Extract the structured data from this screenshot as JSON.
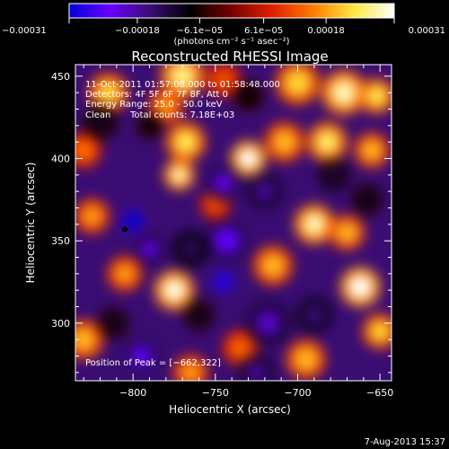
{
  "chart_data": {
    "type": "heatmap",
    "title": "Reconstructed RHESSI Image",
    "xlabel": "Heliocentric X (arcsec)",
    "ylabel": "Heliocentric Y (arcsec)",
    "xlim": [
      -835,
      -643
    ],
    "ylim": [
      265,
      457
    ],
    "x_ticks": [
      -800,
      -750,
      -700,
      -650
    ],
    "x_tick_labels": [
      "−800",
      "−750",
      "−700",
      "−650"
    ],
    "y_ticks": [
      300,
      350,
      400,
      450
    ],
    "y_tick_labels": [
      "300",
      "350",
      "400",
      "450"
    ],
    "colorbar": {
      "range": [
        -0.00031,
        0.00031
      ],
      "ticks": [
        -0.00031,
        -0.00018,
        -6.1e-05,
        6.1e-05,
        0.00018,
        0.00031
      ],
      "tick_labels": [
        "−0.00031",
        "−0.00018",
        "−6.1e−05",
        "6.1e−05",
        "0.00018",
        "0.00031"
      ],
      "unit": "(photons cm⁻² s⁻¹ asec⁻²)",
      "stops": [
        "#0000d8",
        "#6a00ff",
        "#3a0d73",
        "#000000",
        "#7a0000",
        "#e02000",
        "#ff7a00",
        "#ffe840",
        "#ffffff"
      ]
    },
    "info": {
      "time_range": "11-Oct-2011 01:57:08.000 to 01:58:48.000",
      "detectors": "Detectors: 4F 5F 6F 7F 8F, Att 0",
      "energy": "Energy Range: 25.0 - 50.0 keV",
      "algorithm": "Clean",
      "counts": "Total counts: 7.18E+03"
    },
    "peak": {
      "label": "Position of Peak = [−662,322]",
      "x": -662,
      "y": 322
    },
    "footer_date": "7-Aug-2013 15:37",
    "blobs": [
      {
        "x": -815,
        "y": 440,
        "v": 0.00022,
        "s": 9
      },
      {
        "x": -770,
        "y": 450,
        "v": 0.00026,
        "s": 10
      },
      {
        "x": -780,
        "y": 432,
        "v": 0.00018,
        "s": 8
      },
      {
        "x": -745,
        "y": 448,
        "v": 0.00012,
        "s": 8
      },
      {
        "x": -700,
        "y": 446,
        "v": 0.00022,
        "s": 10
      },
      {
        "x": -672,
        "y": 440,
        "v": 0.00028,
        "s": 10
      },
      {
        "x": -652,
        "y": 438,
        "v": 0.00024,
        "s": 8
      },
      {
        "x": -768,
        "y": 410,
        "v": 0.00024,
        "s": 9
      },
      {
        "x": -730,
        "y": 400,
        "v": 0.00031,
        "s": 8
      },
      {
        "x": -708,
        "y": 410,
        "v": 0.0002,
        "s": 9
      },
      {
        "x": -682,
        "y": 410,
        "v": 0.00025,
        "s": 9
      },
      {
        "x": -655,
        "y": 405,
        "v": 0.0002,
        "s": 8
      },
      {
        "x": -772,
        "y": 390,
        "v": 0.00028,
        "s": 7
      },
      {
        "x": -830,
        "y": 405,
        "v": 0.00015,
        "s": 8
      },
      {
        "x": -825,
        "y": 365,
        "v": 0.00018,
        "s": 8
      },
      {
        "x": -690,
        "y": 360,
        "v": 0.00028,
        "s": 9
      },
      {
        "x": -670,
        "y": 355,
        "v": 0.0002,
        "s": 8
      },
      {
        "x": -750,
        "y": 372,
        "v": 0.00012,
        "s": 7
      },
      {
        "x": -775,
        "y": 320,
        "v": 0.0003,
        "s": 9
      },
      {
        "x": -805,
        "y": 330,
        "v": 0.00018,
        "s": 8
      },
      {
        "x": -715,
        "y": 335,
        "v": 0.0002,
        "s": 9
      },
      {
        "x": -662,
        "y": 322,
        "v": 0.00031,
        "s": 9
      },
      {
        "x": -650,
        "y": 295,
        "v": 0.00022,
        "s": 8
      },
      {
        "x": -830,
        "y": 290,
        "v": 0.0002,
        "s": 9
      },
      {
        "x": -765,
        "y": 270,
        "v": 0.00018,
        "s": 8
      },
      {
        "x": -735,
        "y": 285,
        "v": 0.00014,
        "s": 8
      },
      {
        "x": -695,
        "y": 278,
        "v": 0.0002,
        "s": 9
      },
      {
        "x": -820,
        "y": 422,
        "v": -0.0001,
        "s": 8
      },
      {
        "x": -790,
        "y": 420,
        "v": -8e-05,
        "s": 6
      },
      {
        "x": -800,
        "y": 362,
        "v": -0.00031,
        "s": 7
      },
      {
        "x": -790,
        "y": 345,
        "v": -0.00022,
        "s": 7
      },
      {
        "x": -745,
        "y": 385,
        "v": -0.00022,
        "s": 8
      },
      {
        "x": -720,
        "y": 380,
        "v": -0.00018,
        "s": 8
      },
      {
        "x": -743,
        "y": 350,
        "v": -0.00024,
        "s": 10
      },
      {
        "x": -745,
        "y": 325,
        "v": -0.00028,
        "s": 8
      },
      {
        "x": -765,
        "y": 345,
        "v": -0.00014,
        "s": 8
      },
      {
        "x": -718,
        "y": 300,
        "v": -0.0002,
        "s": 10
      },
      {
        "x": -725,
        "y": 270,
        "v": -0.00018,
        "s": 8
      },
      {
        "x": -795,
        "y": 280,
        "v": -0.00024,
        "s": 8
      },
      {
        "x": -690,
        "y": 305,
        "v": -0.00016,
        "s": 8
      },
      {
        "x": -678,
        "y": 390,
        "v": -0.00012,
        "s": 7
      },
      {
        "x": -730,
        "y": 438,
        "v": -8e-05,
        "s": 7
      },
      {
        "x": -658,
        "y": 375,
        "v": -0.0001,
        "s": 7
      },
      {
        "x": -760,
        "y": 305,
        "v": -0.0001,
        "s": 7
      },
      {
        "x": -812,
        "y": 300,
        "v": -0.0001,
        "s": 7
      }
    ]
  }
}
